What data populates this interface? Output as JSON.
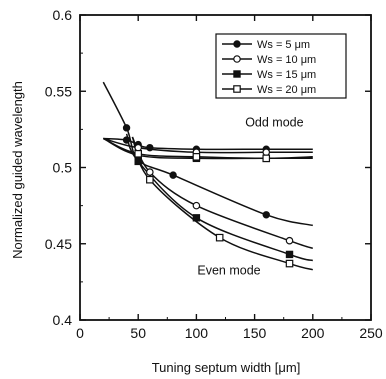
{
  "chart_data": {
    "type": "line",
    "xlabel": "Tuning septum width  [μm]",
    "ylabel": "Normalized guided wavelength",
    "xlim": [
      0,
      250
    ],
    "ylim": [
      0.4,
      0.6
    ],
    "xticks": [
      0,
      50,
      100,
      150,
      200,
      250
    ],
    "yticks": [
      0.4,
      0.45,
      0.5,
      0.55,
      0.6
    ],
    "ytick_labels": [
      "0.4",
      "0.45",
      "0.5",
      "0.55",
      "0.6"
    ],
    "grid": false,
    "legend_position": "top-right",
    "annotations": [
      {
        "text": "Odd mode",
        "x": 167,
        "y": 0.527
      },
      {
        "text": "Even mode",
        "x": 128,
        "y": 0.43
      }
    ],
    "series": [
      {
        "name": "Ws = 5 μm",
        "marker": "filled-circle",
        "odd": {
          "x": [
            40,
            50,
            60,
            100,
            160
          ],
          "y": [
            0.518,
            0.515,
            0.513,
            0.512,
            0.512
          ],
          "curve": [
            [
              20,
              0.519
            ],
            [
              200,
              0.512
            ]
          ]
        },
        "even": {
          "x": [
            40,
            50,
            80,
            160
          ],
          "y": [
            0.526,
            0.505,
            0.495,
            0.469
          ],
          "curve": [
            [
              20,
              0.556
            ],
            [
              200,
              0.462
            ]
          ]
        }
      },
      {
        "name": "Ws = 10 μm",
        "marker": "open-circle",
        "odd": {
          "x": [
            50,
            100,
            160
          ],
          "y": [
            0.513,
            0.51,
            0.51
          ],
          "curve": [
            [
              20,
              0.519
            ],
            [
              200,
              0.51
            ]
          ]
        },
        "even": {
          "x": [
            60,
            100,
            180
          ],
          "y": [
            0.497,
            0.475,
            0.452
          ],
          "curve": [
            [
              45,
              0.52
            ],
            [
              200,
              0.447
            ]
          ]
        }
      },
      {
        "name": "Ws = 15 μm",
        "marker": "filled-square",
        "odd": {
          "x": [
            50,
            100,
            160
          ],
          "y": [
            0.508,
            0.506,
            0.506
          ],
          "curve": [
            [
              20,
              0.519
            ],
            [
              200,
              0.506
            ]
          ]
        },
        "even": {
          "x": [
            50,
            100,
            180
          ],
          "y": [
            0.504,
            0.467,
            0.443
          ],
          "curve": [
            [
              40,
              0.522
            ],
            [
              200,
              0.439
            ]
          ]
        }
      },
      {
        "name": "Ws = 20 μm",
        "marker": "open-square",
        "odd": {
          "x": [
            50,
            100,
            160
          ],
          "y": [
            0.509,
            0.507,
            0.506
          ],
          "curve": [
            [
              20,
              0.519
            ],
            [
              200,
              0.507
            ]
          ]
        },
        "even": {
          "x": [
            60,
            120,
            180
          ],
          "y": [
            0.492,
            0.454,
            0.437
          ],
          "curve": [
            [
              45,
              0.52
            ],
            [
              200,
              0.433
            ]
          ]
        }
      }
    ]
  }
}
